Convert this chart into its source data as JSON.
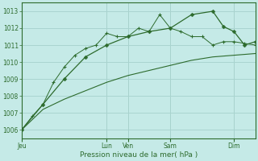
{
  "xlabel": "Pression niveau de la mer( hPa )",
  "background_color": "#c5eae7",
  "plot_bg_color": "#c5eae7",
  "grid_color": "#aad4d0",
  "line_color": "#2d6b2d",
  "ylim": [
    1005.5,
    1013.5
  ],
  "yticks": [
    1006,
    1007,
    1008,
    1009,
    1010,
    1011,
    1012,
    1013
  ],
  "day_labels": [
    "Jeu",
    "",
    "Lun",
    "Ven",
    "",
    "Sam",
    "",
    "Dim"
  ],
  "vline_positions": [
    0,
    96,
    120,
    168,
    240
  ],
  "vline_labels": [
    "Jeu",
    "Lun",
    "Ven",
    "Sam",
    "Dim"
  ],
  "xlim": [
    0,
    264
  ],
  "series_smooth": {
    "x": [
      0,
      24,
      48,
      72,
      96,
      120,
      144,
      168,
      192,
      216,
      240,
      264
    ],
    "y": [
      1006.0,
      1007.2,
      1007.8,
      1008.3,
      1008.8,
      1009.2,
      1009.5,
      1009.8,
      1010.1,
      1010.3,
      1010.4,
      1010.5
    ]
  },
  "series_plus": {
    "x": [
      0,
      12,
      24,
      36,
      48,
      60,
      72,
      84,
      96,
      108,
      120,
      132,
      144,
      156,
      168,
      180,
      192,
      204,
      216,
      228,
      240,
      252,
      264
    ],
    "y": [
      1006.0,
      1006.8,
      1007.5,
      1008.8,
      1009.7,
      1010.4,
      1010.8,
      1011.0,
      1011.7,
      1011.5,
      1011.5,
      1012.0,
      1011.8,
      1012.8,
      1012.0,
      1011.8,
      1011.5,
      1011.5,
      1011.0,
      1011.2,
      1011.2,
      1011.1,
      1011.0
    ]
  },
  "series_diamond": {
    "x": [
      0,
      24,
      48,
      72,
      96,
      120,
      144,
      168,
      192,
      216,
      228,
      240,
      252,
      264
    ],
    "y": [
      1006.0,
      1007.5,
      1009.0,
      1010.3,
      1011.0,
      1011.5,
      1011.8,
      1012.0,
      1012.8,
      1013.0,
      1012.1,
      1011.8,
      1011.0,
      1011.2
    ]
  }
}
